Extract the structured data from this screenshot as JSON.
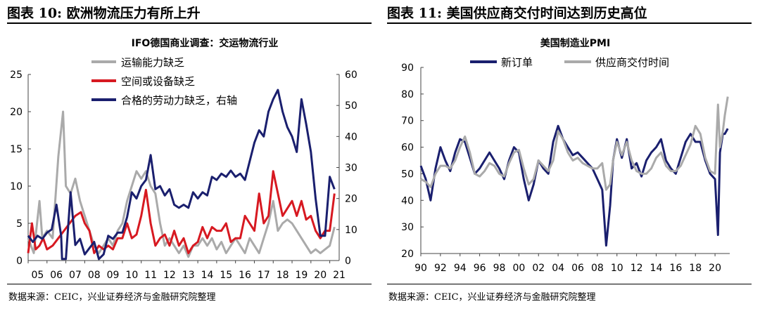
{
  "figures": [
    {
      "fig_title": "图表 10:  欧洲物流压力有所上升",
      "source": "数据来源：CEIC，兴业证券经济与金融研究院整理"
    },
    {
      "fig_title": "图表 11:  美国供应商交付时间达到历史高位",
      "source": "数据来源：CEIC，兴业证券经济与金融研究院整理"
    }
  ],
  "chart_data": [
    {
      "type": "line",
      "title": "IFO德国商业调查：交运物流行业",
      "legend_position": "top-right",
      "x_tick_labels": [
        "05",
        "06",
        "07",
        "08",
        "09",
        "10",
        "11",
        "12",
        "13",
        "14",
        "15",
        "16",
        "17",
        "18",
        "19",
        "20",
        "21"
      ],
      "xlim": [
        2005,
        2021.5
      ],
      "ylim_left": [
        0,
        25
      ],
      "ylim_right": [
        0,
        60
      ],
      "yticks_left": [
        "0",
        "5",
        "10",
        "15",
        "20",
        "25"
      ],
      "yticks_right": [
        "0",
        "10",
        "20",
        "30",
        "40",
        "50",
        "60"
      ],
      "grid": false,
      "series": [
        {
          "name": "运输能力缺乏",
          "axis": "left",
          "color": "#aaaaaa",
          "x": [
            2005.0,
            2005.3,
            2005.6,
            2005.75,
            2006.0,
            2006.3,
            2006.6,
            2006.85,
            2007.0,
            2007.25,
            2007.5,
            2007.75,
            2008.0,
            2008.25,
            2008.5,
            2008.75,
            2009.0,
            2009.25,
            2009.5,
            2009.75,
            2010.0,
            2010.25,
            2010.5,
            2010.75,
            2011.0,
            2011.25,
            2011.5,
            2011.75,
            2012.0,
            2012.25,
            2012.5,
            2012.75,
            2013.0,
            2013.25,
            2013.5,
            2013.75,
            2014.0,
            2014.25,
            2014.5,
            2014.75,
            2015.0,
            2015.25,
            2015.5,
            2015.75,
            2016.0,
            2016.25,
            2016.5,
            2016.75,
            2017.0,
            2017.25,
            2017.5,
            2017.75,
            2018.0,
            2018.25,
            2018.5,
            2018.75,
            2019.0,
            2019.25,
            2019.5,
            2019.75,
            2020.0,
            2020.25,
            2020.5,
            2020.75,
            2021.0,
            2021.25
          ],
          "values": [
            3,
            1,
            8,
            3,
            4,
            3,
            14,
            20,
            10,
            9,
            11,
            8,
            6,
            4,
            2,
            1,
            2,
            3,
            2,
            4,
            5,
            8,
            10,
            12,
            11,
            12,
            10,
            9,
            5,
            2,
            3,
            2,
            1,
            2,
            0.5,
            2,
            2,
            3,
            2,
            3,
            1.5,
            2.5,
            1,
            2,
            3,
            2,
            1,
            3,
            2,
            1,
            3,
            5,
            8,
            4,
            5,
            5.5,
            5,
            4,
            3,
            2,
            1,
            1.5,
            1,
            1.5,
            2,
            4.5
          ]
        },
        {
          "name": "空间或设备缺乏",
          "axis": "left",
          "color": "#d71921",
          "x": [
            2005.0,
            2005.2,
            2005.4,
            2005.6,
            2005.8,
            2006.0,
            2006.3,
            2006.6,
            2006.9,
            2007.2,
            2007.5,
            2007.8,
            2008.0,
            2008.25,
            2008.5,
            2008.75,
            2009.0,
            2009.25,
            2009.5,
            2009.75,
            2010.0,
            2010.25,
            2010.5,
            2010.75,
            2011.0,
            2011.25,
            2011.5,
            2011.75,
            2012.0,
            2012.25,
            2012.5,
            2012.75,
            2013.0,
            2013.25,
            2013.5,
            2013.75,
            2014.0,
            2014.25,
            2014.5,
            2014.75,
            2015.0,
            2015.25,
            2015.5,
            2015.75,
            2016.0,
            2016.25,
            2016.5,
            2016.75,
            2017.0,
            2017.25,
            2017.5,
            2017.75,
            2018.0,
            2018.25,
            2018.5,
            2018.75,
            2019.0,
            2019.25,
            2019.5,
            2019.75,
            2020.0,
            2020.25,
            2020.5,
            2020.75,
            2021.0,
            2021.25
          ],
          "values": [
            1,
            5,
            1.5,
            2,
            3,
            1.5,
            2,
            3,
            4,
            5,
            6,
            6.5,
            5,
            4,
            1,
            2,
            1.5,
            2,
            1.5,
            3,
            3,
            5,
            3,
            3.5,
            6,
            9.5,
            5,
            2,
            3,
            3.5,
            2,
            4,
            2,
            3,
            1,
            2,
            2.5,
            4.5,
            3,
            4.5,
            4,
            4,
            5,
            2.5,
            3,
            3,
            6,
            5,
            4,
            9,
            5,
            6,
            12,
            9,
            6,
            7,
            8,
            6,
            8,
            5.5,
            6,
            4,
            3,
            4,
            4,
            9
          ]
        },
        {
          "name": "合格的劳动力缺乏，右轴",
          "axis": "right",
          "color": "#1a1f6e",
          "x": [
            2005.0,
            2005.25,
            2005.5,
            2005.75,
            2006.0,
            2006.25,
            2006.5,
            2006.75,
            2006.8,
            2007.0,
            2007.25,
            2007.5,
            2007.75,
            2008.0,
            2008.25,
            2008.5,
            2008.75,
            2009.0,
            2009.25,
            2009.5,
            2009.75,
            2010.0,
            2010.25,
            2010.5,
            2010.75,
            2011.0,
            2011.25,
            2011.5,
            2011.75,
            2012.0,
            2012.25,
            2012.5,
            2012.75,
            2013.0,
            2013.25,
            2013.5,
            2013.75,
            2014.0,
            2014.25,
            2014.5,
            2014.75,
            2015.0,
            2015.25,
            2015.5,
            2015.75,
            2016.0,
            2016.25,
            2016.5,
            2016.75,
            2017.0,
            2017.25,
            2017.5,
            2017.75,
            2018.0,
            2018.25,
            2018.5,
            2018.75,
            2019.0,
            2019.25,
            2019.5,
            2019.75,
            2020.0,
            2020.25,
            2020.5,
            2020.75,
            2021.0,
            2021.25
          ],
          "values": [
            8,
            6,
            8,
            7,
            9,
            10,
            18,
            8,
            0.5,
            0.5,
            22,
            5,
            7,
            2,
            4,
            6,
            0.5,
            2,
            8,
            7,
            9,
            9,
            14,
            22,
            20,
            24,
            26,
            34,
            23,
            24,
            21,
            23,
            18,
            17,
            18,
            17,
            22,
            20,
            22,
            21,
            27,
            26,
            28,
            27,
            29,
            27,
            28,
            26,
            32,
            38,
            42,
            40,
            48,
            52,
            55,
            48,
            43,
            40,
            35,
            52,
            44,
            35,
            20,
            8,
            8,
            27,
            23
          ]
        }
      ]
    },
    {
      "type": "line",
      "title": "美国制造业PMI",
      "legend_position": "top",
      "x_tick_labels": [
        "90",
        "92",
        "94",
        "96",
        "98",
        "00",
        "02",
        "04",
        "06",
        "08",
        "10",
        "12",
        "14",
        "16",
        "18",
        "20"
      ],
      "xlim": [
        1990,
        2021.5
      ],
      "ylim": [
        20,
        90
      ],
      "yticks": [
        "20",
        "30",
        "40",
        "50",
        "60",
        "70",
        "80",
        "90"
      ],
      "grid": false,
      "series": [
        {
          "name": "新订单",
          "color": "#1a1f6e",
          "x": [
            1990.0,
            1990.5,
            1991.0,
            1991.5,
            1992.0,
            1992.5,
            1993.0,
            1993.5,
            1994.0,
            1994.5,
            1995.0,
            1995.5,
            1996.0,
            1996.5,
            1997.0,
            1997.5,
            1998.0,
            1998.5,
            1999.0,
            1999.5,
            2000.0,
            2000.5,
            2001.0,
            2001.5,
            2002.0,
            2002.5,
            2003.0,
            2003.5,
            2004.0,
            2004.5,
            2005.0,
            2005.5,
            2006.0,
            2006.5,
            2007.0,
            2007.5,
            2008.0,
            2008.5,
            2008.9,
            2009.3,
            2009.6,
            2010.0,
            2010.5,
            2011.0,
            2011.5,
            2012.0,
            2012.5,
            2013.0,
            2013.5,
            2014.0,
            2014.5,
            2015.0,
            2015.5,
            2016.0,
            2016.5,
            2017.0,
            2017.5,
            2018.0,
            2018.5,
            2019.0,
            2019.5,
            2020.0,
            2020.3,
            2020.5,
            2020.8,
            2021.0,
            2021.3
          ],
          "values": [
            53,
            48,
            40,
            52,
            60,
            55,
            51,
            58,
            63,
            62,
            56,
            50,
            52,
            55,
            58,
            55,
            52,
            48,
            55,
            60,
            58,
            48,
            40,
            46,
            55,
            52,
            50,
            62,
            68,
            63,
            60,
            57,
            58,
            56,
            54,
            52,
            48,
            44,
            23,
            38,
            55,
            63,
            56,
            63,
            52,
            54,
            49,
            55,
            58,
            60,
            63,
            55,
            52,
            50,
            56,
            62,
            65,
            62,
            62,
            55,
            50,
            48,
            27,
            58,
            65,
            65,
            67
          ]
        },
        {
          "name": "供应商交付时间",
          "color": "#aaaaaa",
          "x": [
            1990.0,
            1990.5,
            1991.0,
            1991.5,
            1992.0,
            1992.5,
            1993.0,
            1993.5,
            1994.0,
            1994.5,
            1995.0,
            1995.5,
            1996.0,
            1996.5,
            1997.0,
            1997.5,
            1998.0,
            1998.5,
            1999.0,
            1999.5,
            2000.0,
            2000.5,
            2001.0,
            2001.5,
            2002.0,
            2002.5,
            2003.0,
            2003.5,
            2004.0,
            2004.5,
            2005.0,
            2005.5,
            2006.0,
            2006.5,
            2007.0,
            2007.5,
            2008.0,
            2008.5,
            2008.9,
            2009.3,
            2009.6,
            2010.0,
            2010.5,
            2011.0,
            2011.5,
            2012.0,
            2012.5,
            2013.0,
            2013.5,
            2014.0,
            2014.5,
            2015.0,
            2015.5,
            2016.0,
            2016.5,
            2017.0,
            2017.5,
            2018.0,
            2018.5,
            2019.0,
            2019.5,
            2020.0,
            2020.3,
            2020.5,
            2020.8,
            2021.0,
            2021.3
          ],
          "values": [
            48,
            47,
            45,
            50,
            53,
            53,
            52,
            55,
            60,
            64,
            58,
            50,
            49,
            51,
            54,
            53,
            50,
            49,
            54,
            58,
            59,
            52,
            46,
            48,
            55,
            53,
            51,
            55,
            66,
            63,
            58,
            55,
            56,
            54,
            53,
            52,
            52,
            54,
            44,
            46,
            55,
            62,
            57,
            62,
            55,
            51,
            50,
            50,
            52,
            56,
            58,
            53,
            51,
            51,
            53,
            57,
            61,
            68,
            65,
            56,
            51,
            50,
            76,
            60,
            66,
            72,
            79
          ]
        }
      ]
    }
  ]
}
